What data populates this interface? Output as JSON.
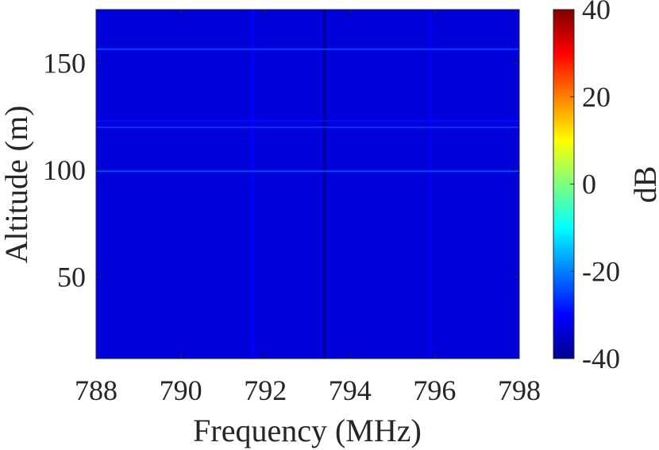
{
  "chart_data": {
    "type": "heatmap",
    "title": "",
    "xlabel": "Frequency (MHz)",
    "ylabel": "Altitude (m)",
    "xlim": [
      788,
      798
    ],
    "ylim": [
      12,
      175
    ],
    "x_ticks": [
      "788",
      "790",
      "792",
      "794",
      "796",
      "798"
    ],
    "y_ticks": [
      "50",
      "100",
      "150"
    ],
    "colorbar": {
      "label": "dB",
      "colormap": "jet",
      "range": [
        -40,
        40
      ],
      "ticks": [
        "40",
        "20",
        "0",
        "-20",
        "-40"
      ]
    },
    "background_level_db": -33,
    "vertical_features": [
      {
        "frequency": 791.7,
        "level_db": -30
      },
      {
        "frequency": 793.4,
        "level_db": -40
      },
      {
        "frequency": 795.9,
        "level_db": -31
      }
    ],
    "horizontal_features": [
      {
        "altitude": 99.5,
        "level_db": -24
      },
      {
        "altitude": 120,
        "level_db": -26
      },
      {
        "altitude": 123,
        "level_db": -29
      },
      {
        "altitude": 156.5,
        "level_db": -25
      }
    ]
  }
}
